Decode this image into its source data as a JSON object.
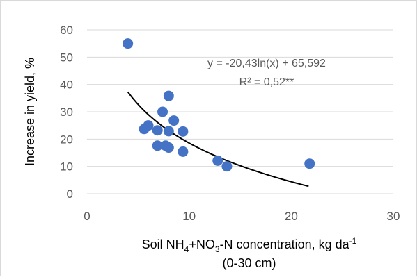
{
  "chart_data": {
    "type": "scatter",
    "xlabel_main": "Soil NH",
    "xlabel_sub1": "4",
    "xlabel_mid": "+NO",
    "xlabel_sub2": "3",
    "xlabel_rest": "-N concentration, kg da",
    "xlabel_sup": "-1",
    "xlabel_line2": "(0-30 cm)",
    "ylabel": "Increase in yield, %",
    "xlim": [
      0,
      30
    ],
    "ylim": [
      0,
      60
    ],
    "x_ticks": [
      "0",
      "10",
      "20",
      "30"
    ],
    "y_ticks": [
      "0",
      "10",
      "20",
      "30",
      "40",
      "50",
      "60"
    ],
    "grid": "horizontal",
    "marker_color": "#4472C4",
    "trend_color": "#000000",
    "trendline": {
      "equation": "y = -20,43ln(x) + 65,592",
      "r_squared": "R² = 0,52**",
      "a": -20.43,
      "b": 65.592,
      "x_range": [
        4.0,
        21.7
      ]
    },
    "points": [
      {
        "x": 4.0,
        "y": 55.0
      },
      {
        "x": 5.6,
        "y": 23.7
      },
      {
        "x": 6.0,
        "y": 25.0
      },
      {
        "x": 6.9,
        "y": 23.2
      },
      {
        "x": 6.9,
        "y": 17.6
      },
      {
        "x": 7.4,
        "y": 30.0
      },
      {
        "x": 7.7,
        "y": 17.6
      },
      {
        "x": 8.0,
        "y": 16.9
      },
      {
        "x": 8.0,
        "y": 22.9
      },
      {
        "x": 8.0,
        "y": 35.8
      },
      {
        "x": 8.5,
        "y": 26.8
      },
      {
        "x": 9.4,
        "y": 22.8
      },
      {
        "x": 9.4,
        "y": 15.4
      },
      {
        "x": 12.8,
        "y": 12.1
      },
      {
        "x": 13.7,
        "y": 10.0
      },
      {
        "x": 21.8,
        "y": 11.0
      }
    ]
  }
}
